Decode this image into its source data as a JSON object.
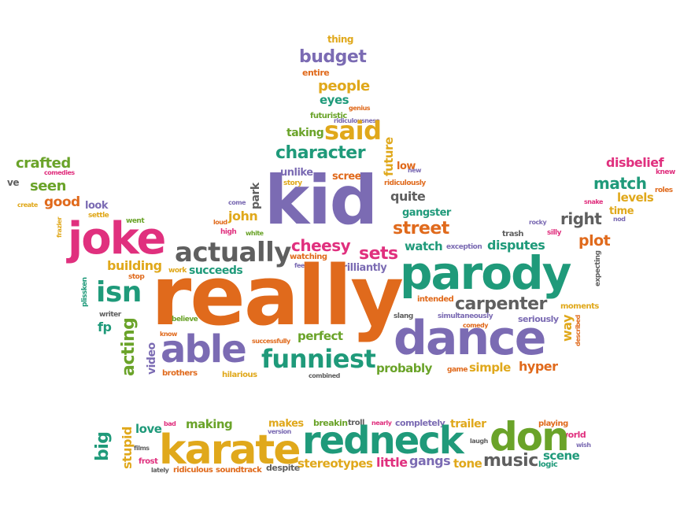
{
  "palette": {
    "orange": "#e06a1c",
    "purple": "#7b6bb3",
    "teal": "#1f9a7a",
    "green": "#6aa329",
    "magenta": "#e0307e",
    "gold": "#e0a81b",
    "gray": "#5f5f5f"
  },
  "words": {
    "thing": "thing",
    "budget": "budget",
    "entire": "entire",
    "people": "people",
    "eyes": "eyes",
    "genius": "genius",
    "futuristic": "futuristic",
    "ridiculousness": "ridiculousness",
    "taking": "taking",
    "said": "said",
    "character": "character",
    "future": "future",
    "low": "low",
    "new": "new",
    "unlike": "unlike",
    "screen": "screen",
    "story": "story",
    "ridiculously": "ridiculously",
    "crafted": "crafted",
    "comedies": "comedies",
    "ve": "ve",
    "seen": "seen",
    "create": "create",
    "good": "good",
    "look": "look",
    "settle": "settle",
    "kid": "kid",
    "park": "park",
    "come": "come",
    "quite": "quite",
    "gangster": "gangster",
    "disbelief": "disbelief",
    "knew": "knew",
    "match": "match",
    "roles": "roles",
    "levels": "levels",
    "snake": "snake",
    "time": "time",
    "nod": "nod",
    "right": "right",
    "frazier": "frazier",
    "went": "went",
    "joke": "joke",
    "john": "john",
    "loud": "loud",
    "high": "high",
    "white": "white",
    "street": "street",
    "rocky": "rocky",
    "silly": "silly",
    "trash": "trash",
    "plot": "plot",
    "actually": "actually",
    "cheesy": "cheesy",
    "watch": "watch",
    "exception": "exception",
    "disputes": "disputes",
    "expecting": "expecting",
    "building": "building",
    "sets": "sets",
    "work": "work",
    "succeeds": "succeeds",
    "watching": "watching",
    "feel": "feel",
    "brilliantly": "brilliantly",
    "parody": "parody",
    "plissken": "plissken",
    "isn": "isn",
    "stop": "stop",
    "really": "really",
    "intended": "intended",
    "carpenter": "carpenter",
    "moments": "moments",
    "writer": "writer",
    "fp": "fp",
    "believe": "believe",
    "slang": "slang",
    "simultaneously": "simultaneously",
    "seriously": "seriously",
    "way": "way",
    "described": "described",
    "comedy": "comedy",
    "acting": "acting",
    "know": "know",
    "able": "able",
    "successfully": "successfully",
    "perfect": "perfect",
    "dance": "dance",
    "video": "video",
    "funniest": "funniest",
    "brothers": "brothers",
    "hilarious": "hilarious",
    "combined": "combined",
    "probably": "probably",
    "game": "game",
    "simple": "simple",
    "hyper": "hyper",
    "big": "big",
    "stupid": "stupid",
    "bad": "bad",
    "making": "making",
    "love": "love",
    "films": "films",
    "makes": "makes",
    "version": "version",
    "breakin": "breakin",
    "troll": "troll",
    "nearly": "nearly",
    "completely": "completely",
    "trailer": "trailer",
    "laugh": "laugh",
    "playing": "playing",
    "world": "world",
    "wish": "wish",
    "karate": "karate",
    "redneck": "redneck",
    "don": "don",
    "scene": "scene",
    "frost": "frost",
    "lately": "lately",
    "ridiculous": "ridiculous",
    "soundtrack": "soundtrack",
    "despite": "despite",
    "stereotypes": "stereotypes",
    "little": "little",
    "gangs": "gangs",
    "tone": "tone",
    "music": "music",
    "logic": "logic"
  }
}
